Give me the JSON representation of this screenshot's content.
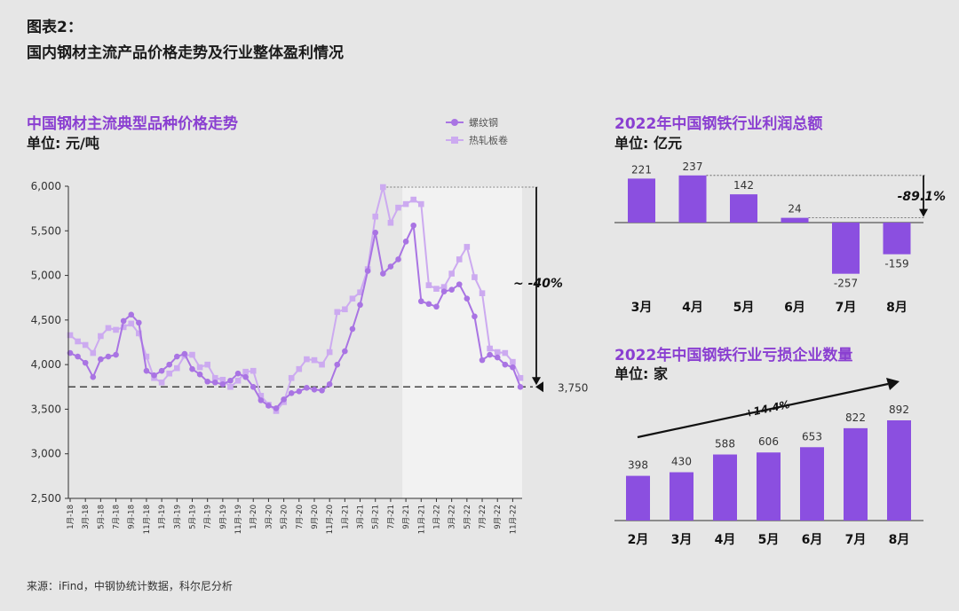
{
  "header": {
    "figure_label": "图表2：",
    "title": "国内钢材主流产品价格走势及行业整体盈利情况"
  },
  "colors": {
    "accent": "#8a3fd1",
    "bar": "#8b4fe0",
    "rebar": "#a974e3",
    "hrc": "#ccaaf0",
    "text": "#1a1a1a",
    "background": "#e6e6e6",
    "shade": "#f2f2f2"
  },
  "source": "来源：iFind，中钢协统计数据，科尔尼分析",
  "chart_data": [
    {
      "type": "line",
      "title": "中国钢材主流典型品种价格走势",
      "subtitle": "单位: 元/吨",
      "x_ticks": [
        "1月-18",
        "3月-18",
        "5月-18",
        "7月-18",
        "9月-18",
        "11月-18",
        "1月-19",
        "3月-19",
        "5月-19",
        "7月-19",
        "9月-19",
        "11月-19",
        "1月-20",
        "3月-20",
        "5月-20",
        "7月-20",
        "9月-20",
        "11月-20",
        "1月-21",
        "3月-21",
        "5月-21",
        "7月-21",
        "9月-21",
        "11月-21",
        "1月-22",
        "3月-22",
        "5月-22",
        "7月-22",
        "9月-22",
        "11月-22"
      ],
      "ylim": [
        2500,
        6000
      ],
      "y_ticks": [
        "2,500",
        "3,000",
        "3,500",
        "4,000",
        "4,500",
        "5,000",
        "5,500",
        "6,000"
      ],
      "legend_position": "top-right",
      "series": [
        {
          "name": "螺纹钢",
          "values": [
            4130,
            4090,
            4020,
            3860,
            4060,
            4090,
            4110,
            4490,
            4560,
            4470,
            3930,
            3880,
            3930,
            4000,
            4090,
            4120,
            3950,
            3890,
            3810,
            3800,
            3780,
            3820,
            3900,
            3860,
            3750,
            3600,
            3540,
            3510,
            3610,
            3680,
            3700,
            3740,
            3720,
            3710,
            3780,
            4000,
            4150,
            4400,
            4670,
            5050,
            5480,
            5020,
            5100,
            5180,
            5380,
            5560,
            4710,
            4680,
            4650,
            4820,
            4840,
            4900,
            4740,
            4540,
            4050,
            4110,
            4080,
            4000,
            3970,
            3750
          ]
        },
        {
          "name": "热轧板卷",
          "values": [
            4330,
            4260,
            4220,
            4130,
            4320,
            4410,
            4390,
            4420,
            4460,
            4350,
            4090,
            3850,
            3800,
            3900,
            3960,
            4100,
            4110,
            3970,
            4000,
            3850,
            3830,
            3750,
            3820,
            3920,
            3930,
            3650,
            3550,
            3480,
            3580,
            3850,
            3950,
            4060,
            4050,
            4000,
            4140,
            4590,
            4620,
            4740,
            4810,
            5070,
            5660,
            5990,
            5590,
            5760,
            5800,
            5850,
            5800,
            4890,
            4850,
            4870,
            5020,
            5180,
            5320,
            4980,
            4800,
            4180,
            4140,
            4130,
            4030,
            3850
          ]
        }
      ],
      "annotations": {
        "drop_label": "~ -40%",
        "reference_value": 3750,
        "reference_label": "3,750"
      }
    },
    {
      "type": "bar",
      "title": "2022年中国钢铁行业利润总额",
      "subtitle": "单位: 亿元",
      "categories": [
        "3月",
        "4月",
        "5月",
        "6月",
        "7月",
        "8月"
      ],
      "values": [
        221,
        237,
        142,
        24,
        -257,
        -159
      ],
      "value_labels": [
        "221",
        "237",
        "142",
        "24",
        "-257",
        "-159"
      ],
      "annotations": {
        "change_label": "-89.1%"
      }
    },
    {
      "type": "bar",
      "title": "2022年中国钢铁行业亏损企业数量",
      "subtitle": "单位: 家",
      "categories": [
        "2月",
        "3月",
        "4月",
        "5月",
        "6月",
        "7月",
        "8月"
      ],
      "values": [
        398,
        430,
        588,
        606,
        653,
        822,
        892
      ],
      "value_labels": [
        "398",
        "430",
        "588",
        "606",
        "653",
        "822",
        "892"
      ],
      "annotations": {
        "trend_label": "+14.4%"
      }
    }
  ]
}
